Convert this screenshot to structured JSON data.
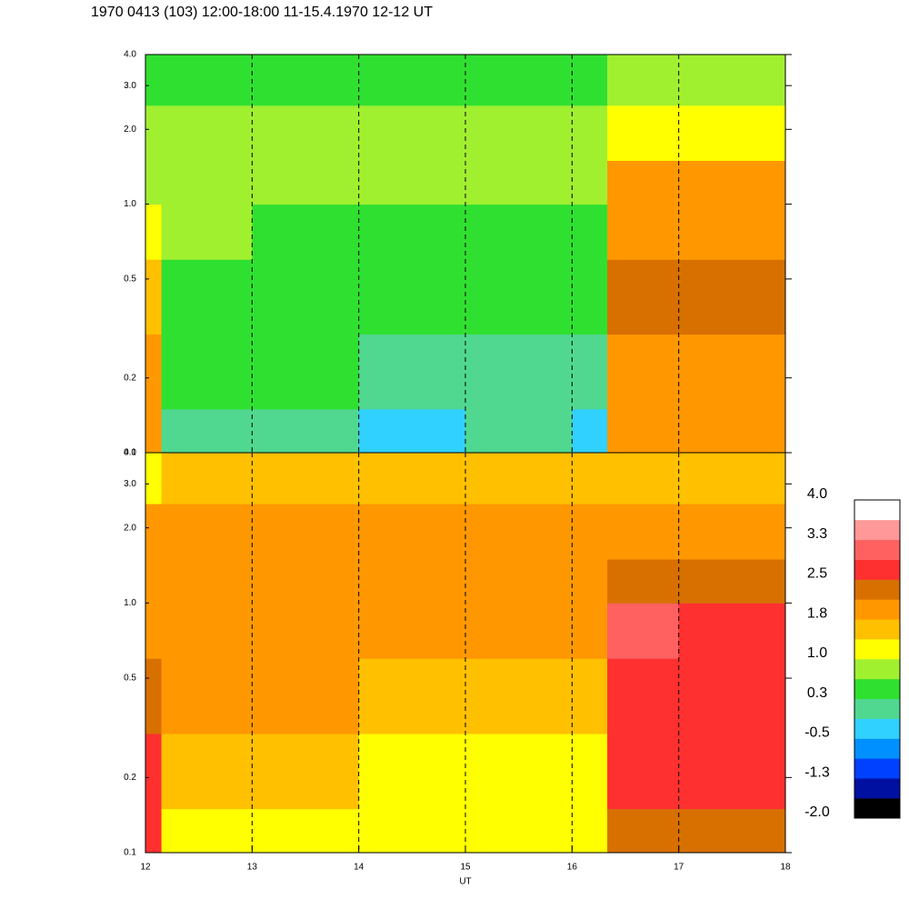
{
  "title": "1970 0413 (103) 12:00-18:00 11-15.4.1970  12-12 UT",
  "chart_data": [
    {
      "type": "heatmap",
      "x_bins": [
        12,
        12.15,
        13,
        14,
        15,
        16,
        16.33,
        17,
        18
      ],
      "y_bins": [
        0.1,
        0.15,
        0.3,
        0.6,
        1,
        1.5,
        2.5,
        4
      ],
      "values": [
        [
          1.8,
          1.8,
          1.5,
          1.2,
          0.8,
          0.8,
          0.5
        ],
        [
          0.2,
          0.5,
          0.5,
          0.8,
          0.8,
          0.8,
          0.5
        ],
        [
          0,
          0.5,
          0.5,
          0.6,
          0.8,
          0.8,
          0.5
        ],
        [
          -0.4,
          0.2,
          0.5,
          0.6,
          0.8,
          0.8,
          0.5
        ],
        [
          0,
          0.2,
          0.5,
          0.6,
          0.8,
          0.8,
          0.5
        ],
        [
          -0.4,
          0.2,
          0.5,
          0.6,
          0.8,
          0.8,
          0.5
        ],
        [
          1.8,
          2,
          2.4,
          2,
          1.8,
          1.2,
          0.8
        ],
        [
          1.8,
          1.8,
          2.2,
          2,
          1.8,
          1.2,
          0.8
        ]
      ],
      "xlim": [
        12,
        18
      ],
      "xticks": [
        12,
        13,
        14,
        15,
        16,
        17,
        18
      ],
      "ylim": [
        0.1,
        4
      ],
      "log_y": true,
      "yticks": [
        0.1,
        0.2,
        0.5,
        {
          "value": 1,
          "label": "1.0"
        },
        {
          "value": 2,
          "label": "2.0"
        },
        {
          "value": 3,
          "label": "3.0"
        },
        {
          "value": 4,
          "label": "4.0"
        }
      ]
    },
    {
      "type": "heatmap",
      "x_bins": [
        12,
        12.15,
        13,
        14,
        15,
        16,
        16.33,
        17,
        18
      ],
      "y_bins": [
        0.1,
        0.15,
        0.3,
        0.6,
        1,
        1.5,
        2.5,
        4
      ],
      "values": [
        [
          2.8,
          2.8,
          2.4,
          2,
          1.8,
          1.8,
          1
        ],
        [
          1.2,
          1.5,
          1.8,
          2,
          2,
          2,
          1.5
        ],
        [
          1.2,
          1.5,
          1.8,
          2,
          2,
          2,
          1.5
        ],
        [
          1.2,
          1.2,
          1.5,
          1.8,
          2,
          2,
          1.5
        ],
        [
          1,
          1.2,
          1.5,
          1.8,
          2,
          2,
          1.5
        ],
        [
          1,
          1.2,
          1.5,
          1.8,
          2,
          2,
          1.5
        ],
        [
          2.4,
          2.6,
          2.8,
          3,
          2.4,
          2,
          1.5
        ],
        [
          2.2,
          2.6,
          2.8,
          2.8,
          2.4,
          2,
          1.5
        ]
      ],
      "xlim": [
        12,
        18
      ],
      "xticks": [
        12,
        13,
        14,
        15,
        16,
        17,
        18
      ],
      "xlabel": "UT",
      "ylim": [
        0.1,
        4
      ],
      "log_y": true,
      "yticks": [
        0.1,
        0.2,
        0.5,
        {
          "value": 1,
          "label": "1.0"
        },
        {
          "value": 2,
          "label": "2.0"
        },
        {
          "value": 3,
          "label": "3.0"
        },
        {
          "value": 4,
          "label": "4.0"
        }
      ]
    },
    {
      "type": "colorbar",
      "lim": [
        -2,
        4
      ],
      "colors": [
        "#000000",
        "#0010a0",
        "#0040ff",
        "#0090ff",
        "#30d0ff",
        "#50d890",
        "#30e030",
        "#a0f030",
        "#ffff00",
        "#ffc000",
        "#ff9800",
        "#d87000",
        "#ff3030",
        "#ff6060",
        "#ff9898",
        "#ffffff"
      ],
      "ticks": [
        {
          "value": 4,
          "label": "4.0"
        },
        {
          "value": 3.25,
          "label": "3.3"
        },
        2.5,
        {
          "value": 1.75,
          "label": "1.8"
        },
        {
          "value": 1,
          "label": "1.0"
        },
        {
          "value": 0.25,
          "label": "0.3"
        },
        -0.5,
        {
          "value": -1.25,
          "label": "-1.3"
        },
        {
          "value": -2,
          "label": "-2.0"
        }
      ]
    }
  ]
}
